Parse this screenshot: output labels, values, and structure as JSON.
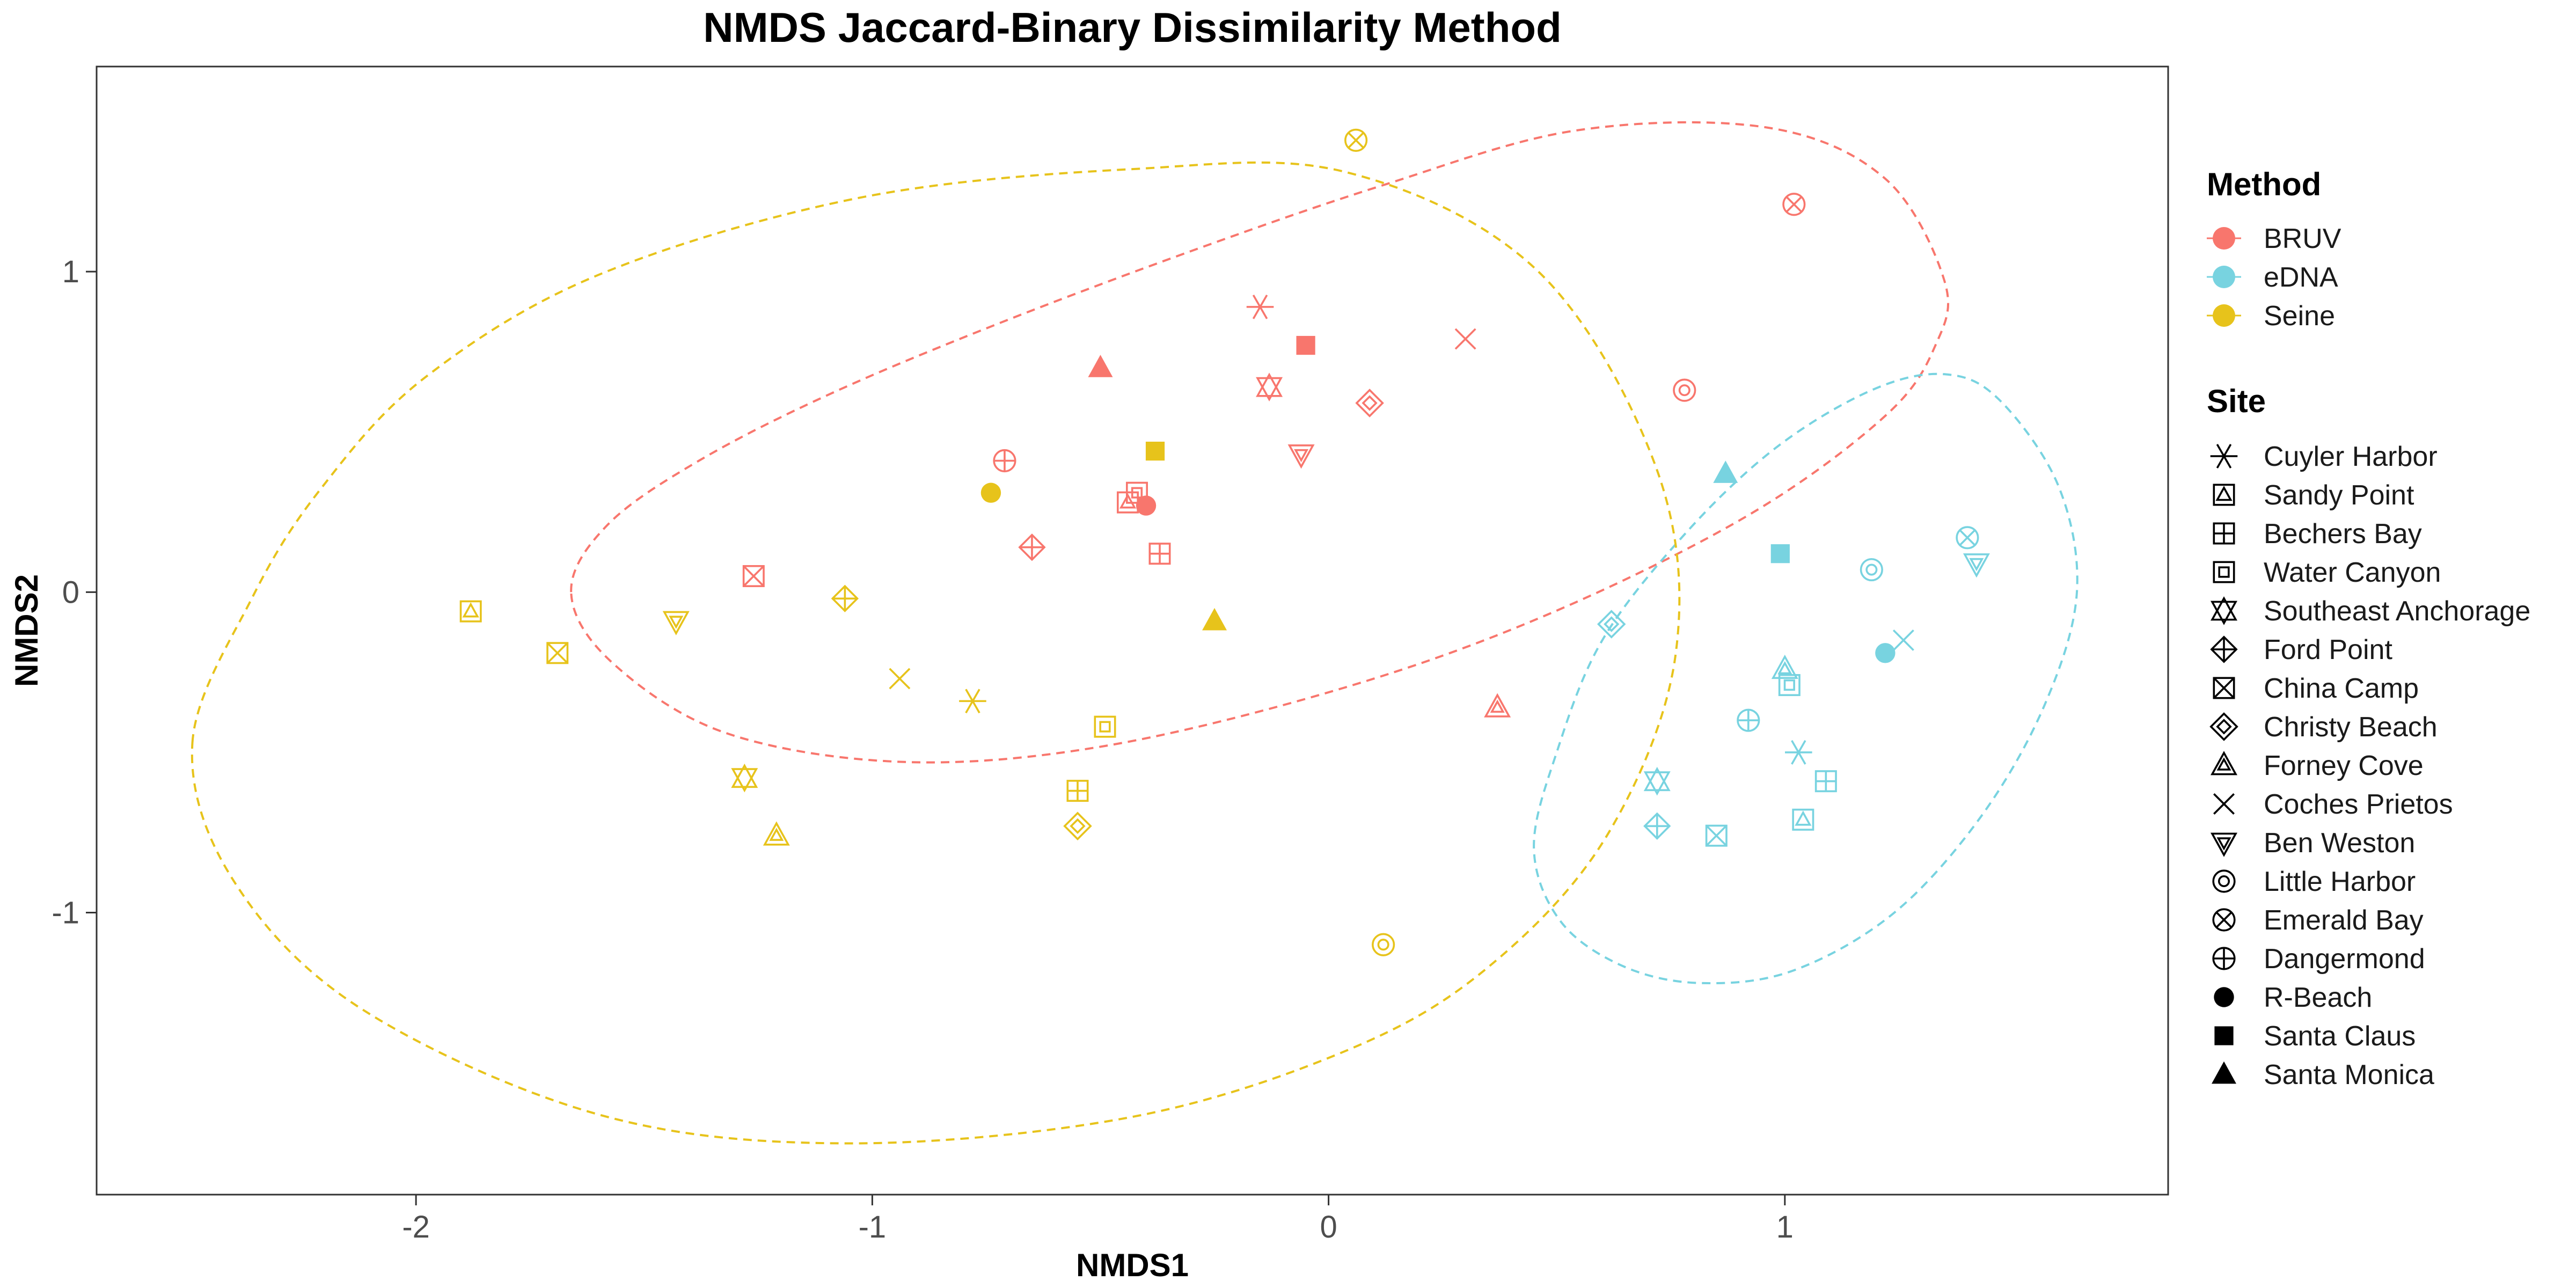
{
  "chart_data": {
    "type": "scatter",
    "title": "NMDS Jaccard-Binary Dissimilarity Method",
    "xlabel": "NMDS1",
    "ylabel": "NMDS2",
    "xlim": [
      -2.7,
      1.84
    ],
    "ylim": [
      -1.88,
      1.64
    ],
    "xticks": [
      -2,
      -1,
      0,
      1
    ],
    "xtick_labels": [
      "-2",
      "-1",
      "0",
      "1"
    ],
    "yticks": [
      -1,
      0,
      1
    ],
    "ytick_labels": [
      "-1",
      "0",
      "1"
    ],
    "grid": false,
    "legend_position": "right",
    "method_legend_title": "Method",
    "site_legend_title": "Site",
    "methods": [
      {
        "name": "BRUV",
        "color": "#F8766D"
      },
      {
        "name": "eDNA",
        "color": "#78D3E0"
      },
      {
        "name": "Seine",
        "color": "#E7C31B"
      }
    ],
    "sites": [
      {
        "name": "Cuyler Harbor",
        "shape": "asterisk"
      },
      {
        "name": "Sandy Point",
        "shape": "square-triangle"
      },
      {
        "name": "Bechers Bay",
        "shape": "square-plus"
      },
      {
        "name": "Water Canyon",
        "shape": "double-square"
      },
      {
        "name": "Southeast Anchorage",
        "shape": "star-of-david"
      },
      {
        "name": "Ford Point",
        "shape": "diamond-plus"
      },
      {
        "name": "China Camp",
        "shape": "square-cross"
      },
      {
        "name": "Christy Beach",
        "shape": "double-diamond"
      },
      {
        "name": "Forney Cove",
        "shape": "double-triangle"
      },
      {
        "name": "Coches Prietos",
        "shape": "cross"
      },
      {
        "name": "Ben Weston",
        "shape": "double-triangle-down"
      },
      {
        "name": "Little Harbor",
        "shape": "double-circle"
      },
      {
        "name": "Emerald Bay",
        "shape": "circle-cross"
      },
      {
        "name": "Dangermond",
        "shape": "circle-plus"
      },
      {
        "name": "R-Beach",
        "shape": "filled-circle"
      },
      {
        "name": "Santa Claus",
        "shape": "filled-square"
      },
      {
        "name": "Santa Monica",
        "shape": "filled-triangle"
      }
    ],
    "points": [
      {
        "method": "BRUV",
        "site": "Cuyler Harbor",
        "x": -0.15,
        "y": 0.89
      },
      {
        "method": "BRUV",
        "site": "Santa Claus",
        "x": -0.05,
        "y": 0.77
      },
      {
        "method": "BRUV",
        "site": "Coches Prietos",
        "x": 0.3,
        "y": 0.79
      },
      {
        "method": "BRUV",
        "site": "Santa Monica",
        "x": -0.5,
        "y": 0.7
      },
      {
        "method": "BRUV",
        "site": "Southeast Anchorage",
        "x": -0.13,
        "y": 0.64
      },
      {
        "method": "BRUV",
        "site": "Christy Beach",
        "x": 0.09,
        "y": 0.59
      },
      {
        "method": "BRUV",
        "site": "Ben Weston",
        "x": -0.06,
        "y": 0.43
      },
      {
        "method": "BRUV",
        "site": "Dangermond",
        "x": -0.71,
        "y": 0.41
      },
      {
        "method": "BRUV",
        "site": "Water Canyon",
        "x": -0.42,
        "y": 0.31
      },
      {
        "method": "BRUV",
        "site": "Sandy Point",
        "x": -0.44,
        "y": 0.28
      },
      {
        "method": "BRUV",
        "site": "R-Beach",
        "x": -0.4,
        "y": 0.27
      },
      {
        "method": "BRUV",
        "site": "Ford Point",
        "x": -0.65,
        "y": 0.14
      },
      {
        "method": "BRUV",
        "site": "Bechers Bay",
        "x": -0.37,
        "y": 0.12
      },
      {
        "method": "BRUV",
        "site": "China Camp",
        "x": -1.26,
        "y": 0.05
      },
      {
        "method": "BRUV",
        "site": "Forney Cove",
        "x": 0.37,
        "y": -0.36
      },
      {
        "method": "BRUV",
        "site": "Little Harbor",
        "x": 0.78,
        "y": 0.63
      },
      {
        "method": "BRUV",
        "site": "Emerald Bay",
        "x": 1.02,
        "y": 1.21
      },
      {
        "method": "eDNA",
        "site": "Santa Monica",
        "x": 0.87,
        "y": 0.37
      },
      {
        "method": "eDNA",
        "site": "Emerald Bay",
        "x": 1.4,
        "y": 0.17
      },
      {
        "method": "eDNA",
        "site": "Santa Claus",
        "x": 0.99,
        "y": 0.12
      },
      {
        "method": "eDNA",
        "site": "Little Harbor",
        "x": 1.19,
        "y": 0.07
      },
      {
        "method": "eDNA",
        "site": "Ben Weston",
        "x": 1.42,
        "y": 0.09
      },
      {
        "method": "eDNA",
        "site": "Christy Beach",
        "x": 0.62,
        "y": -0.1
      },
      {
        "method": "eDNA",
        "site": "Coches Prietos",
        "x": 1.26,
        "y": -0.15
      },
      {
        "method": "eDNA",
        "site": "R-Beach",
        "x": 1.22,
        "y": -0.19
      },
      {
        "method": "eDNA",
        "site": "Forney Cove",
        "x": 1.0,
        "y": -0.24
      },
      {
        "method": "eDNA",
        "site": "Water Canyon",
        "x": 1.01,
        "y": -0.29
      },
      {
        "method": "eDNA",
        "site": "Dangermond",
        "x": 0.92,
        "y": -0.4
      },
      {
        "method": "eDNA",
        "site": "Cuyler Harbor",
        "x": 1.03,
        "y": -0.5
      },
      {
        "method": "eDNA",
        "site": "Bechers Bay",
        "x": 1.09,
        "y": -0.59
      },
      {
        "method": "eDNA",
        "site": "Southeast Anchorage",
        "x": 0.72,
        "y": -0.59
      },
      {
        "method": "eDNA",
        "site": "Ford Point",
        "x": 0.72,
        "y": -0.73
      },
      {
        "method": "eDNA",
        "site": "Sandy Point",
        "x": 1.04,
        "y": -0.71
      },
      {
        "method": "eDNA",
        "site": "China Camp",
        "x": 0.85,
        "y": -0.76
      },
      {
        "method": "Seine",
        "site": "Emerald Bay",
        "x": 0.06,
        "y": 1.41
      },
      {
        "method": "Seine",
        "site": "Santa Claus",
        "x": -0.38,
        "y": 0.44
      },
      {
        "method": "Seine",
        "site": "R-Beach",
        "x": -0.74,
        "y": 0.31
      },
      {
        "method": "Seine",
        "site": "Ford Point",
        "x": -1.06,
        "y": -0.02
      },
      {
        "method": "Seine",
        "site": "Santa Monica",
        "x": -0.25,
        "y": -0.09
      },
      {
        "method": "Seine",
        "site": "Sandy Point",
        "x": -1.88,
        "y": -0.06
      },
      {
        "method": "Seine",
        "site": "Ben Weston",
        "x": -1.43,
        "y": -0.09
      },
      {
        "method": "Seine",
        "site": "China Camp",
        "x": -1.69,
        "y": -0.19
      },
      {
        "method": "Seine",
        "site": "Coches Prietos",
        "x": -0.94,
        "y": -0.27
      },
      {
        "method": "Seine",
        "site": "Cuyler Harbor",
        "x": -0.78,
        "y": -0.34
      },
      {
        "method": "Seine",
        "site": "Water Canyon",
        "x": -0.49,
        "y": -0.42
      },
      {
        "method": "Seine",
        "site": "Southeast Anchorage",
        "x": -1.28,
        "y": -0.58
      },
      {
        "method": "Seine",
        "site": "Bechers Bay",
        "x": -0.55,
        "y": -0.62
      },
      {
        "method": "Seine",
        "site": "Christy Beach",
        "x": -0.55,
        "y": -0.73
      },
      {
        "method": "Seine",
        "site": "Forney Cove",
        "x": -1.21,
        "y": -0.76
      },
      {
        "method": "Seine",
        "site": "Little Harbor",
        "x": 0.12,
        "y": -1.1
      }
    ],
    "ellipses": [
      {
        "method": "BRUV",
        "polygon": [
          [
            -1.66,
            0.0
          ],
          [
            -1.58,
            0.21
          ],
          [
            -1.38,
            0.41
          ],
          [
            -1.09,
            0.62
          ],
          [
            -0.72,
            0.84
          ],
          [
            -0.29,
            1.07
          ],
          [
            0.12,
            1.27
          ],
          [
            0.54,
            1.44
          ],
          [
            0.96,
            1.45
          ],
          [
            1.22,
            1.29
          ],
          [
            1.35,
            0.97
          ],
          [
            1.33,
            0.77
          ],
          [
            1.22,
            0.55
          ],
          [
            0.92,
            0.24
          ],
          [
            0.48,
            -0.07
          ],
          [
            0.03,
            -0.3
          ],
          [
            -0.49,
            -0.48
          ],
          [
            -0.93,
            -0.53
          ],
          [
            -1.32,
            -0.44
          ],
          [
            -1.57,
            -0.22
          ]
        ]
      },
      {
        "method": "eDNA",
        "polygon": [
          [
            0.45,
            -0.8
          ],
          [
            0.5,
            -0.5
          ],
          [
            0.6,
            -0.15
          ],
          [
            0.78,
            0.18
          ],
          [
            0.98,
            0.45
          ],
          [
            1.19,
            0.63
          ],
          [
            1.35,
            0.68
          ],
          [
            1.47,
            0.6
          ],
          [
            1.6,
            0.33
          ],
          [
            1.64,
            0.0
          ],
          [
            1.57,
            -0.35
          ],
          [
            1.43,
            -0.7
          ],
          [
            1.24,
            -1.0
          ],
          [
            1.02,
            -1.18
          ],
          [
            0.82,
            -1.22
          ],
          [
            0.65,
            -1.17
          ],
          [
            0.51,
            -1.03
          ]
        ]
      },
      {
        "method": "Seine",
        "polygon": [
          [
            -2.49,
            -0.47
          ],
          [
            -2.36,
            -0.02
          ],
          [
            -2.21,
            0.32
          ],
          [
            -1.98,
            0.67
          ],
          [
            -1.6,
            0.99
          ],
          [
            -1.03,
            1.23
          ],
          [
            -0.43,
            1.32
          ],
          [
            0.04,
            1.31
          ],
          [
            0.46,
            1.0
          ],
          [
            0.72,
            0.38
          ],
          [
            0.76,
            -0.2
          ],
          [
            0.61,
            -0.76
          ],
          [
            0.35,
            -1.17
          ],
          [
            0.04,
            -1.43
          ],
          [
            -0.44,
            -1.64
          ],
          [
            -1.06,
            -1.72
          ],
          [
            -1.6,
            -1.63
          ],
          [
            -2.12,
            -1.3
          ],
          [
            -2.4,
            -0.9
          ]
        ]
      }
    ]
  }
}
